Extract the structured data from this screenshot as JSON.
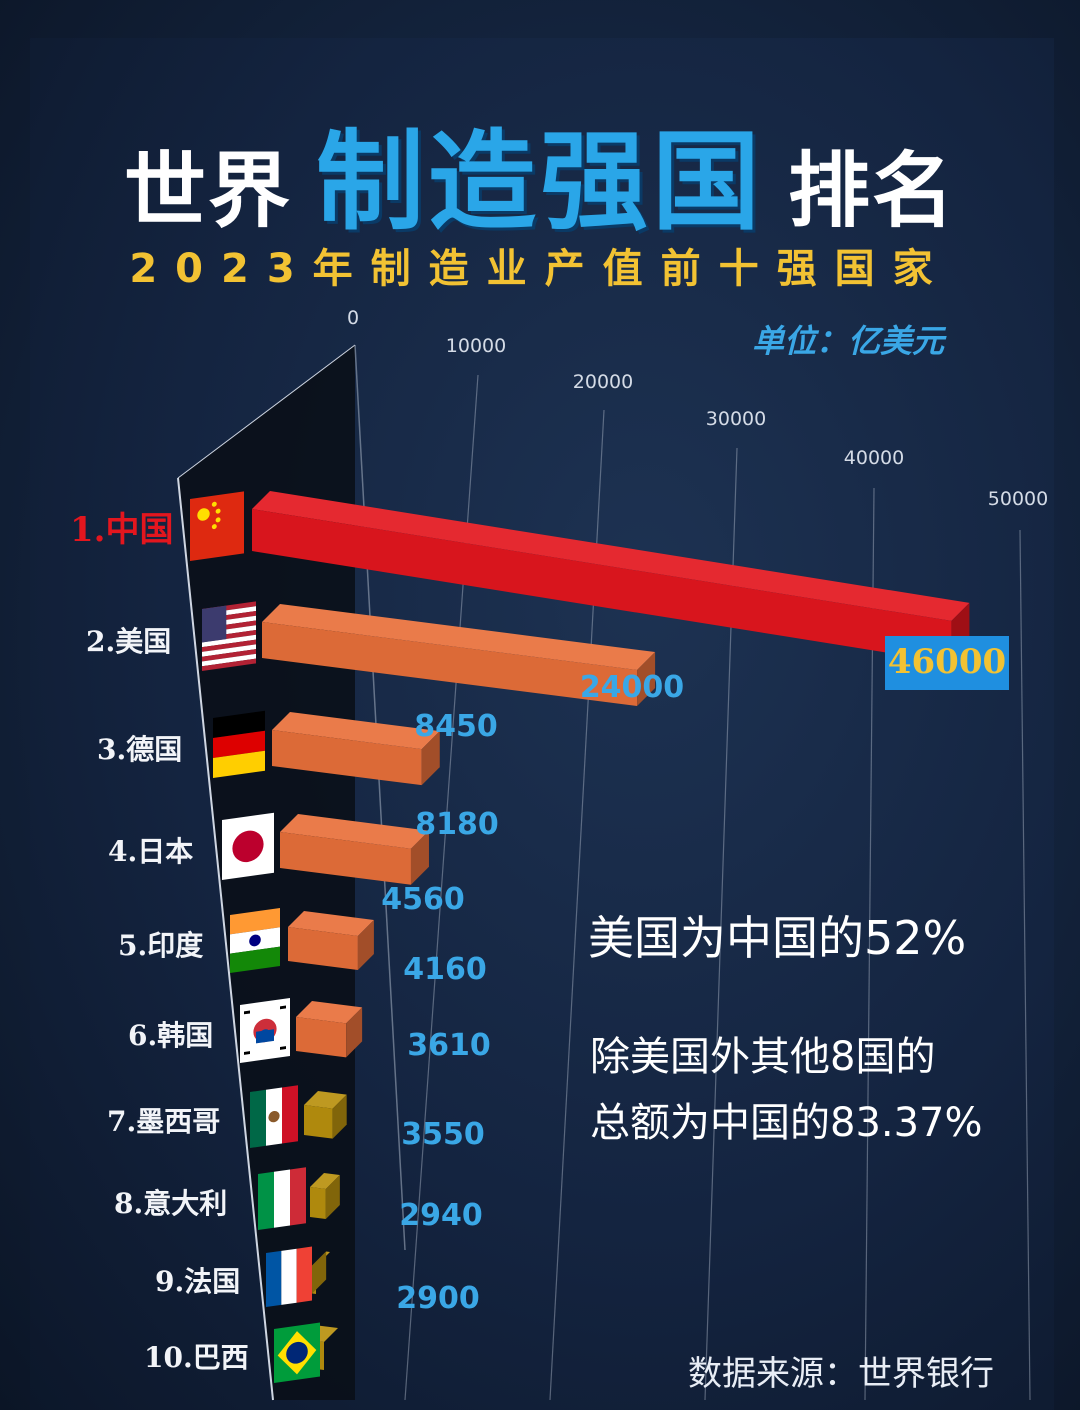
{
  "header": {
    "title_left": "世界",
    "title_highlight": "制造强国",
    "title_right": "排名",
    "subtitle": "2023年制造业产值前十强国家",
    "unit": "单位：亿美元"
  },
  "annotations": {
    "note1": "美国为中国的52%",
    "note2_line1": "除美国外其他8国的",
    "note2_line2": "总额为中国的83.37%"
  },
  "footer": {
    "source": "数据来源：世界银行"
  },
  "colors": {
    "china": "#e3161e",
    "orange": "#e8703a",
    "gold": "#b8900e",
    "value_label": "#3aa7e6",
    "highlight_label_bg": "#1f8fe0",
    "highlight_label_text": "#f2c233"
  },
  "chart_data": {
    "type": "bar",
    "orientation": "horizontal",
    "categories": [
      "1.中国",
      "2.美国",
      "3.德国",
      "4.日本",
      "5.印度",
      "6.韩国",
      "7.墨西哥",
      "8.意大利",
      "9.法国",
      "10.巴西"
    ],
    "values": [
      46000,
      24000,
      8450,
      8180,
      4560,
      4160,
      3610,
      3550,
      2940,
      2900
    ],
    "value_labels": [
      "46000",
      "24000",
      "8450",
      "8180",
      "4560",
      "4160",
      "3610",
      "3550",
      "2940",
      "2900"
    ],
    "xlim": [
      0,
      50000
    ],
    "x_ticks": [
      0,
      10000,
      20000,
      30000,
      40000,
      50000
    ],
    "x_tick_labels": [
      "0",
      "10000",
      "20000",
      "30000",
      "40000",
      "50000"
    ],
    "grid": true,
    "flags": [
      "china-flag-icon",
      "usa-flag-icon",
      "germany-flag-icon",
      "japan-flag-icon",
      "india-flag-icon",
      "korea-flag-icon",
      "mexico-flag-icon",
      "italy-flag-icon",
      "france-flag-icon",
      "brazil-flag-icon"
    ],
    "bar_colors": [
      "#e3161e",
      "#e8703a",
      "#e8703a",
      "#e8703a",
      "#e8703a",
      "#e8703a",
      "#b8900e",
      "#b8900e",
      "#b8900e",
      "#b8900e"
    ]
  }
}
